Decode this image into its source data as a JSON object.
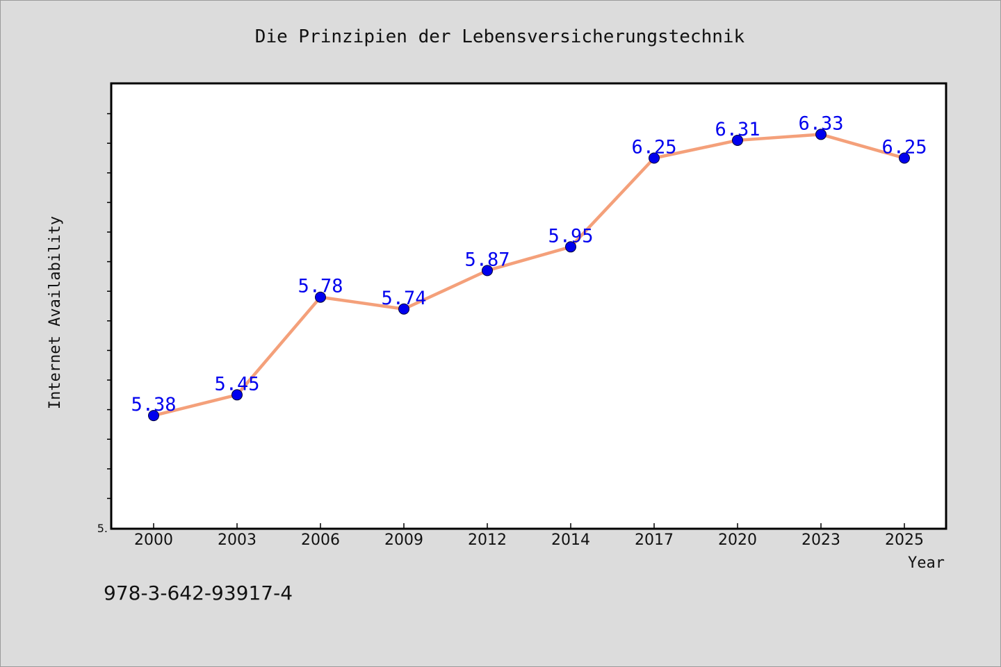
{
  "chart_data": {
    "type": "line",
    "title": "Die Prinzipien der Lebensversicherungstechnik",
    "xlabel": "Year",
    "ylabel": "Internet Availability",
    "categories": [
      "2000",
      "2003",
      "2006",
      "2009",
      "2012",
      "2014",
      "2017",
      "2020",
      "2023",
      "2025"
    ],
    "series": [
      {
        "values": [
          5.38,
          5.45,
          5.78,
          5.74,
          5.87,
          5.95,
          6.25,
          6.31,
          6.33,
          6.25
        ],
        "labels": [
          "5.38",
          "5.45",
          "5.78",
          "5.74",
          "5.87",
          "5.95",
          "6.25",
          "6.31",
          "6.33",
          "6.25"
        ]
      }
    ],
    "ylim": [
      5.0,
      6.5
    ],
    "y_tick_labels": [
      "5."
    ],
    "y_minor_tick_step": 0.1,
    "grid": false,
    "line_color": "#f4a07a",
    "marker_color": "#0000ee",
    "data_label_color": "#0000ee"
  },
  "footer": {
    "isbn": "978-3-642-93917-4"
  }
}
